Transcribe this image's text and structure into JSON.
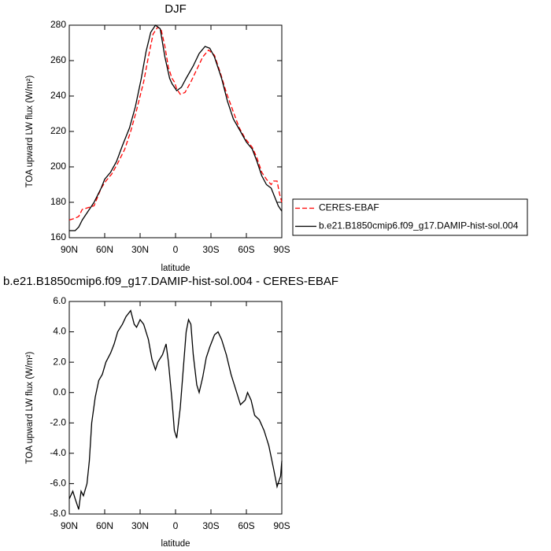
{
  "chart_data": [
    {
      "type": "line",
      "title": "DJF",
      "xlabel": "latitude",
      "ylabel": "TOA upward LW flux (W/m²)",
      "xlim": [
        90,
        -90
      ],
      "xticks": [
        {
          "value": 90,
          "label": "90N"
        },
        {
          "value": 60,
          "label": "60N"
        },
        {
          "value": 30,
          "label": "30N"
        },
        0,
        {
          "value": -30,
          "label": "30S"
        },
        {
          "value": -60,
          "label": "60S"
        },
        {
          "value": -90,
          "label": "90S"
        }
      ],
      "ylim": [
        160,
        280
      ],
      "yticks": [
        160,
        180,
        200,
        220,
        240,
        260,
        280
      ],
      "legend": "right",
      "series": [
        {
          "name": "CERES-EBAF",
          "color": "#ff0000",
          "dashed": true,
          "x": [
            90,
            85,
            82,
            79,
            74,
            69,
            63,
            59,
            54,
            49,
            43,
            38,
            33,
            27,
            23,
            19,
            15,
            12,
            9,
            6,
            3,
            1,
            -1,
            -4,
            -8,
            -13,
            -18,
            -23,
            -28,
            -33,
            -38,
            -43,
            -49,
            -54,
            -59,
            -65,
            -69,
            -73,
            -77,
            -81,
            -83,
            -86,
            -88,
            -90
          ],
          "values": [
            170,
            171,
            172,
            176,
            177,
            178,
            188,
            192,
            196,
            202,
            210,
            220,
            232,
            248,
            262,
            275,
            279,
            277,
            268,
            256,
            250,
            248,
            244,
            241,
            242,
            248,
            255,
            262,
            266,
            263,
            253,
            242,
            231,
            222,
            216,
            211,
            205,
            197,
            193,
            190,
            192,
            192,
            185,
            180
          ]
        },
        {
          "name": "b.e21.B1850cmip6.f09_g17.DAMIP-hist-sol.004",
          "color": "#000000",
          "dashed": false,
          "x": [
            90,
            85,
            82,
            79,
            74,
            69,
            63,
            60,
            55,
            50,
            45,
            39,
            34,
            29,
            25,
            21,
            17,
            13,
            9,
            5,
            3,
            -1,
            -5,
            -9,
            -15,
            -20,
            -25,
            -29,
            -33,
            -39,
            -44,
            -49,
            -55,
            -60,
            -65,
            -69,
            -73,
            -77,
            -81,
            -84,
            -87,
            -90
          ],
          "values": [
            164,
            164,
            166,
            170,
            175,
            180,
            188,
            193,
            197,
            203,
            212,
            222,
            234,
            250,
            265,
            276,
            280,
            278,
            262,
            250,
            247,
            243,
            245,
            250,
            257,
            264,
            268,
            267,
            262,
            250,
            237,
            227,
            220,
            214,
            210,
            203,
            195,
            190,
            188,
            183,
            178,
            175
          ]
        }
      ]
    },
    {
      "type": "line",
      "title": "b.e21.B1850cmip6.f09_g17.DAMIP-hist-sol.004 - CERES-EBAF",
      "xlabel": "latitude",
      "ylabel": "TOA upward LW flux (W/m²)",
      "xlim": [
        90,
        -90
      ],
      "xticks": [
        {
          "value": 90,
          "label": "90N"
        },
        {
          "value": 60,
          "label": "60N"
        },
        {
          "value": 30,
          "label": "30N"
        },
        0,
        {
          "value": -30,
          "label": "30S"
        },
        {
          "value": -60,
          "label": "60S"
        },
        {
          "value": -90,
          "label": "90S"
        }
      ],
      "ylim": [
        -8,
        6
      ],
      "yticks": [
        {
          "value": -8,
          "label": "-8.0"
        },
        {
          "value": -6,
          "label": "-6.0"
        },
        {
          "value": -4,
          "label": "-4.0"
        },
        {
          "value": -2,
          "label": "-2.0"
        },
        {
          "value": 0,
          "label": "0.0"
        },
        {
          "value": 2,
          "label": "2.0"
        },
        {
          "value": 4,
          "label": "4.0"
        },
        {
          "value": 6,
          "label": "6.0"
        }
      ],
      "color": "#000000",
      "x": [
        90,
        87,
        85,
        82,
        80,
        78,
        75,
        73,
        71,
        68,
        65,
        62,
        59,
        55,
        52,
        49,
        45,
        42,
        38,
        35,
        33,
        30,
        27,
        23,
        20,
        17,
        15,
        11,
        8,
        6,
        3,
        1,
        -1,
        -4,
        -7,
        -9,
        -11,
        -13,
        -15,
        -18,
        -20,
        -23,
        -26,
        -29,
        -33,
        -36,
        -39,
        -43,
        -47,
        -51,
        -55,
        -59,
        -61,
        -64,
        -67,
        -71,
        -75,
        -79,
        -83,
        -86,
        -89,
        -90
      ],
      "values": [
        -7.0,
        -6.5,
        -7.0,
        -7.7,
        -6.5,
        -6.8,
        -6.0,
        -4.5,
        -2.0,
        -0.3,
        0.8,
        1.2,
        2.0,
        2.6,
        3.2,
        4.0,
        4.5,
        5.0,
        5.4,
        4.5,
        4.3,
        4.8,
        4.5,
        3.5,
        2.2,
        1.5,
        2.0,
        2.5,
        3.2,
        2.0,
        -0.5,
        -2.5,
        -3.0,
        -1.0,
        2.0,
        4.0,
        4.8,
        4.5,
        2.5,
        0.5,
        0.0,
        1.0,
        2.3,
        3.0,
        3.8,
        4.0,
        3.5,
        2.5,
        1.2,
        0.2,
        -0.8,
        -0.5,
        0.0,
        -0.5,
        -1.5,
        -1.8,
        -2.5,
        -3.5,
        -5.0,
        -6.2,
        -5.5,
        -4.5
      ]
    }
  ]
}
